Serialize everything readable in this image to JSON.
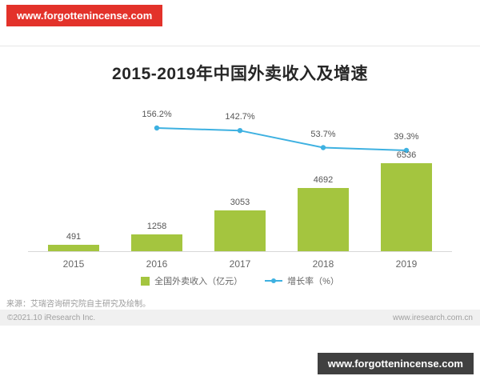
{
  "watermarks": {
    "top": "www.forgottenincense.com",
    "bottom": "www.forgottenincense.com"
  },
  "chart_data": {
    "type": "bar+line",
    "title": "2015-2019年中国外卖收入及增速",
    "categories": [
      "2015",
      "2016",
      "2017",
      "2018",
      "2019"
    ],
    "series": [
      {
        "name": "全国外卖收入（亿元）",
        "type": "bar",
        "color": "#a4c53f",
        "values": [
          491,
          1258,
          3053,
          4692,
          6536
        ]
      },
      {
        "name": "增长率（%）",
        "type": "line",
        "color": "#3eb1e1",
        "values": [
          null,
          156.2,
          142.7,
          53.7,
          39.3
        ],
        "labels": [
          "",
          "156.2%",
          "142.7%",
          "53.7%",
          "39.3%"
        ]
      }
    ],
    "legend_position": "bottom",
    "grid": false,
    "value_labels": true,
    "ylabel": "",
    "xlabel": ""
  },
  "footer": {
    "source": "来源：艾瑞咨询研究院自主研究及绘制。",
    "copyright": "©2021.10 iResearch Inc.",
    "site": "www.iresearch.com.cn"
  }
}
